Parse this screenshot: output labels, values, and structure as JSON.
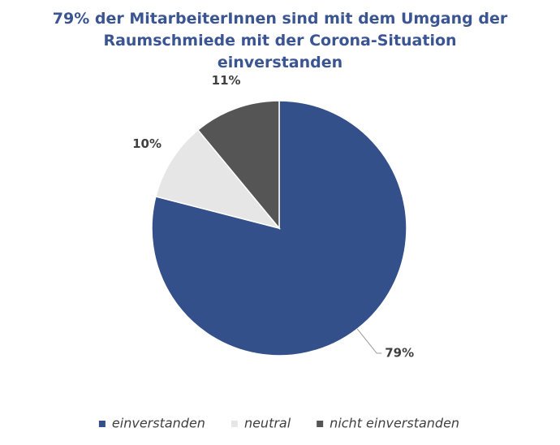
{
  "chart_data": {
    "type": "pie",
    "title": "79% der MitarbeiterInnen sind mit dem Umgang der Raumschmiede mit der Corona-Situation einverstanden",
    "categories": [
      "einverstanden",
      "neutral",
      "nicht einverstanden"
    ],
    "values": [
      79,
      10,
      11
    ],
    "value_labels": [
      "79%",
      "10%",
      "11%"
    ],
    "colors": [
      "#34508a",
      "#e6e6e6",
      "#555555"
    ],
    "legend": "bottom"
  }
}
